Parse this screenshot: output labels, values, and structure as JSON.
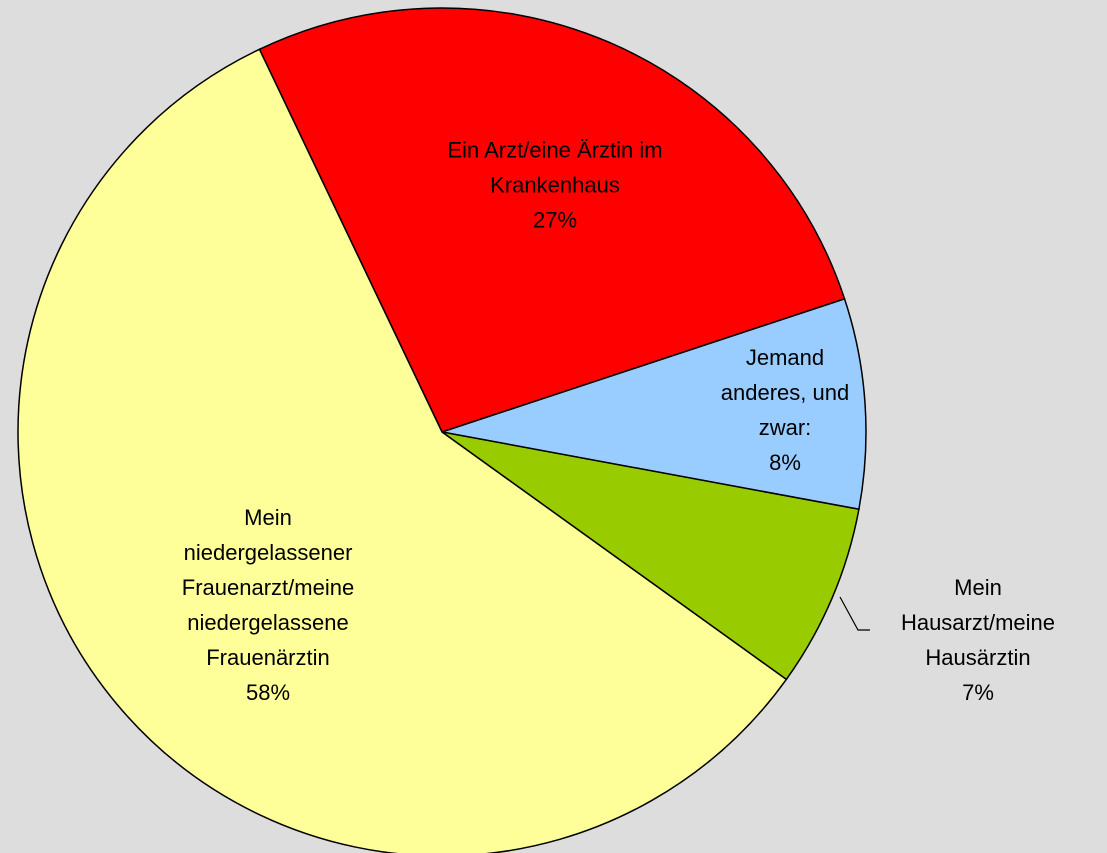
{
  "chart_data": {
    "type": "pie",
    "categories": [
      "Ein Arzt/eine Ärztin im Krankenhaus",
      "Jemand anderes, und zwar:",
      "Mein Hausarzt/meine Hausärztin",
      "Mein niedergelassener Frauenarzt/meine niedergelassene Frauenärztin"
    ],
    "values": [
      27,
      8,
      7,
      58
    ],
    "value_labels": [
      "27%",
      "8%",
      "7%",
      "58%"
    ],
    "colors": [
      "#ff0000",
      "#99ccff",
      "#99cc00",
      "#ffff99"
    ]
  }
}
